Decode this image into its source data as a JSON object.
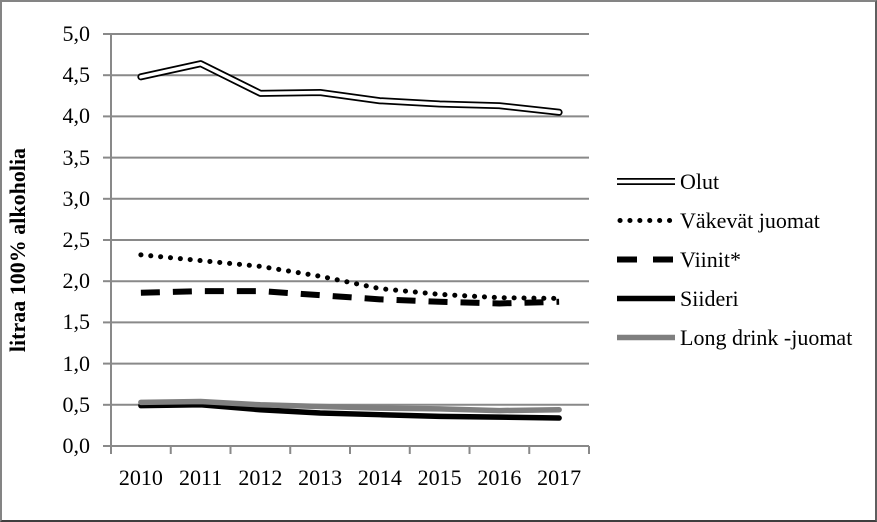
{
  "figure": {
    "background": "#ffffff",
    "border_color": "#7f7f7f"
  },
  "chart_data": {
    "type": "line",
    "title": "",
    "xlabel": "",
    "ylabel": "litraa 100% alkoholia",
    "categories": [
      "2010",
      "2011",
      "2012",
      "2013",
      "2014",
      "2015",
      "2016",
      "2017"
    ],
    "ylim": [
      0,
      5
    ],
    "ytick_step": 0.5,
    "ytick_labels": [
      "0,0",
      "0,5",
      "1,0",
      "1,5",
      "2,0",
      "2,5",
      "3,0",
      "3,5",
      "4,0",
      "4,5",
      "5,0"
    ],
    "decimal_separator": ",",
    "grid": "horizontal",
    "legend_position": "right",
    "colors": {
      "grid": "#898989",
      "axis": "#898989",
      "text": "#000000"
    },
    "series": [
      {
        "name": "Olut",
        "style": "double-outline",
        "color": "#000000",
        "values": [
          4.48,
          4.64,
          4.28,
          4.29,
          4.19,
          4.15,
          4.13,
          4.05
        ]
      },
      {
        "name": "Väkevät juomat",
        "style": "dotted",
        "color": "#000000",
        "values": [
          2.32,
          2.25,
          2.18,
          2.06,
          1.91,
          1.84,
          1.8,
          1.79
        ]
      },
      {
        "name": "Viinit*",
        "style": "dashed",
        "color": "#000000",
        "values": [
          1.86,
          1.88,
          1.88,
          1.83,
          1.78,
          1.75,
          1.73,
          1.75
        ]
      },
      {
        "name": "Siideri",
        "style": "solid",
        "color": "#000000",
        "values": [
          0.49,
          0.5,
          0.44,
          0.4,
          0.38,
          0.36,
          0.35,
          0.34
        ]
      },
      {
        "name": "Long drink -juomat",
        "style": "solid",
        "color": "#7f7f7f",
        "values": [
          0.53,
          0.54,
          0.5,
          0.48,
          0.46,
          0.45,
          0.43,
          0.44
        ]
      }
    ]
  }
}
